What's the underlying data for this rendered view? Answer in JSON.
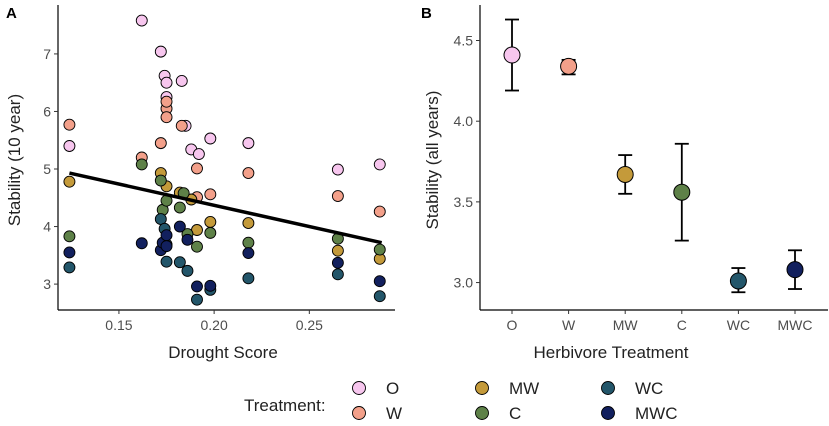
{
  "chart_data": [
    {
      "type": "scatter",
      "panel_label": "A",
      "xlabel": "Drought Score",
      "ylabel": "Stability (10 year)",
      "xlim": [
        0.118,
        0.295
      ],
      "ylim": [
        2.55,
        7.85
      ],
      "xticks": [
        0.15,
        0.2,
        0.25
      ],
      "xtick_labels": [
        "0.15",
        "0.20",
        "0.25"
      ],
      "yticks": [
        3,
        4,
        5,
        6,
        7
      ],
      "ytick_labels": [
        "3",
        "4",
        "5",
        "6",
        "7"
      ],
      "trend_line": {
        "x": [
          0.124,
          0.288
        ],
        "y": [
          4.93,
          3.72
        ]
      },
      "series": [
        {
          "name": "O",
          "points": [
            [
              0.124,
              5.4
            ],
            [
              0.162,
              7.58
            ],
            [
              0.172,
              7.04
            ],
            [
              0.174,
              6.62
            ],
            [
              0.175,
              6.5
            ],
            [
              0.183,
              6.53
            ],
            [
              0.175,
              6.25
            ],
            [
              0.185,
              5.75
            ],
            [
              0.188,
              5.34
            ],
            [
              0.192,
              5.26
            ],
            [
              0.198,
              5.53
            ],
            [
              0.218,
              5.45
            ],
            [
              0.265,
              4.99
            ],
            [
              0.287,
              5.08
            ]
          ]
        },
        {
          "name": "W",
          "points": [
            [
              0.124,
              5.77
            ],
            [
              0.162,
              5.2
            ],
            [
              0.172,
              5.45
            ],
            [
              0.175,
              6.05
            ],
            [
              0.175,
              6.17
            ],
            [
              0.175,
              5.9
            ],
            [
              0.183,
              5.75
            ],
            [
              0.191,
              5.01
            ],
            [
              0.191,
              4.51
            ],
            [
              0.198,
              4.56
            ],
            [
              0.218,
              4.93
            ],
            [
              0.265,
              4.53
            ],
            [
              0.287,
              4.26
            ]
          ]
        },
        {
          "name": "MW",
          "points": [
            [
              0.124,
              4.78
            ],
            [
              0.172,
              4.93
            ],
            [
              0.175,
              4.7
            ],
            [
              0.182,
              4.59
            ],
            [
              0.188,
              4.47
            ],
            [
              0.191,
              3.94
            ],
            [
              0.198,
              4.08
            ],
            [
              0.218,
              4.06
            ],
            [
              0.265,
              3.58
            ],
            [
              0.287,
              3.44
            ]
          ]
        },
        {
          "name": "C",
          "points": [
            [
              0.124,
              3.83
            ],
            [
              0.162,
              5.08
            ],
            [
              0.172,
              4.8
            ],
            [
              0.173,
              4.29
            ],
            [
              0.175,
              4.45
            ],
            [
              0.182,
              4.33
            ],
            [
              0.184,
              4.58
            ],
            [
              0.186,
              3.87
            ],
            [
              0.191,
              3.65
            ],
            [
              0.198,
              3.89
            ],
            [
              0.218,
              3.72
            ],
            [
              0.265,
              3.79
            ],
            [
              0.287,
              3.6
            ]
          ]
        },
        {
          "name": "WC",
          "points": [
            [
              0.124,
              3.29
            ],
            [
              0.172,
              4.13
            ],
            [
              0.174,
              3.96
            ],
            [
              0.175,
              3.69
            ],
            [
              0.175,
              3.39
            ],
            [
              0.182,
              3.38
            ],
            [
              0.186,
              3.23
            ],
            [
              0.191,
              2.73
            ],
            [
              0.198,
              2.9
            ],
            [
              0.218,
              3.1
            ],
            [
              0.265,
              3.17
            ],
            [
              0.287,
              2.79
            ]
          ]
        },
        {
          "name": "MWC",
          "points": [
            [
              0.124,
              3.55
            ],
            [
              0.162,
              3.71
            ],
            [
              0.172,
              3.59
            ],
            [
              0.173,
              3.72
            ],
            [
              0.175,
              3.85
            ],
            [
              0.175,
              3.66
            ],
            [
              0.182,
              4.0
            ],
            [
              0.186,
              3.77
            ],
            [
              0.191,
              2.96
            ],
            [
              0.198,
              2.97
            ],
            [
              0.218,
              3.54
            ],
            [
              0.265,
              3.37
            ],
            [
              0.287,
              3.05
            ]
          ]
        }
      ]
    },
    {
      "type": "scatter",
      "panel_label": "B",
      "xlabel": "Herbivore Treatment",
      "ylabel": "Stability (all years)",
      "categories": [
        "O",
        "W",
        "MW",
        "C",
        "WC",
        "MWC"
      ],
      "ylim": [
        2.83,
        4.72
      ],
      "yticks": [
        3.0,
        3.5,
        4.0,
        4.5
      ],
      "ytick_labels": [
        "3.0",
        "3.5",
        "4.0",
        "4.5"
      ],
      "points": [
        {
          "category": "O",
          "mean": 4.41,
          "lower": 4.19,
          "upper": 4.63
        },
        {
          "category": "W",
          "mean": 4.34,
          "lower": 4.29,
          "upper": 4.38
        },
        {
          "category": "MW",
          "mean": 3.67,
          "lower": 3.55,
          "upper": 3.79
        },
        {
          "category": "C",
          "mean": 3.56,
          "lower": 3.26,
          "upper": 3.86
        },
        {
          "category": "WC",
          "mean": 3.01,
          "lower": 2.94,
          "upper": 3.09
        },
        {
          "category": "MWC",
          "mean": 3.08,
          "lower": 2.96,
          "upper": 3.2
        }
      ]
    }
  ],
  "legend": {
    "title": "Treatment:",
    "items": [
      {
        "label": "O",
        "color": "#f7c6ee"
      },
      {
        "label": "W",
        "color": "#f3a08a"
      },
      {
        "label": "MW",
        "color": "#c49a3a"
      },
      {
        "label": "C",
        "color": "#5e8148"
      },
      {
        "label": "WC",
        "color": "#23566a"
      },
      {
        "label": "MWC",
        "color": "#12205e"
      }
    ]
  }
}
